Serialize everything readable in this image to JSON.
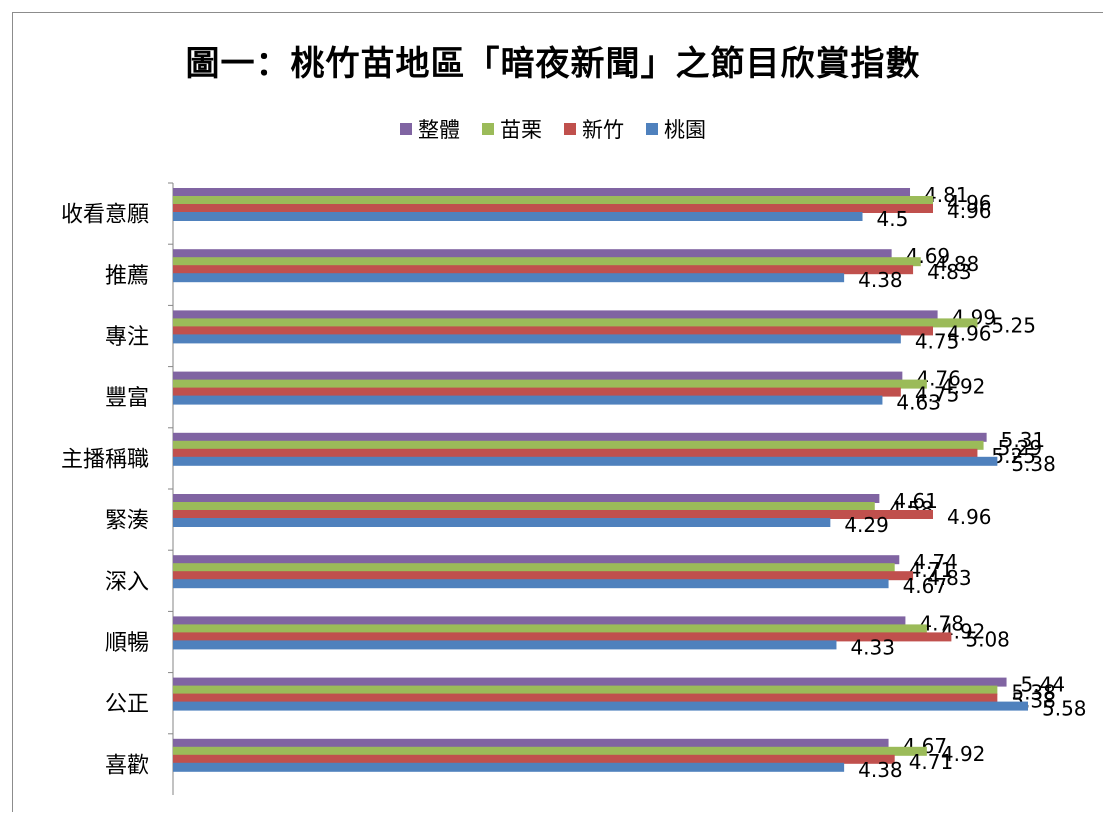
{
  "chart_data": {
    "type": "bar",
    "orientation": "horizontal",
    "title": "圖一：桃竹苗地區「暗夜新聞」之節目欣賞指數",
    "xlabel": "",
    "ylabel": "",
    "xlim": [
      0,
      6
    ],
    "grid": false,
    "legend_position": "top",
    "categories": [
      "收看意願",
      "推薦",
      "專注",
      "豐富",
      "主播稱職",
      "緊湊",
      "深入",
      "順暢",
      "公正",
      "喜歡"
    ],
    "series": [
      {
        "name": "整體",
        "color": "#8064a2",
        "values": [
          4.81,
          4.69,
          4.99,
          4.76,
          5.31,
          4.61,
          4.74,
          4.78,
          5.44,
          4.67
        ]
      },
      {
        "name": "苗栗",
        "color": "#9bbb59",
        "values": [
          4.96,
          4.88,
          5.25,
          4.92,
          5.29,
          4.58,
          4.71,
          4.92,
          5.38,
          4.92
        ]
      },
      {
        "name": "新竹",
        "color": "#c0504d",
        "values": [
          4.96,
          4.83,
          4.96,
          4.75,
          5.25,
          4.96,
          4.83,
          5.08,
          5.38,
          4.71
        ]
      },
      {
        "name": "桃園",
        "color": "#4f81bd",
        "values": [
          4.5,
          4.38,
          4.75,
          4.63,
          5.38,
          4.29,
          4.67,
          4.33,
          5.58,
          4.38
        ]
      }
    ],
    "legend_order": [
      "整體",
      "苗栗",
      "新竹",
      "桃園"
    ]
  }
}
